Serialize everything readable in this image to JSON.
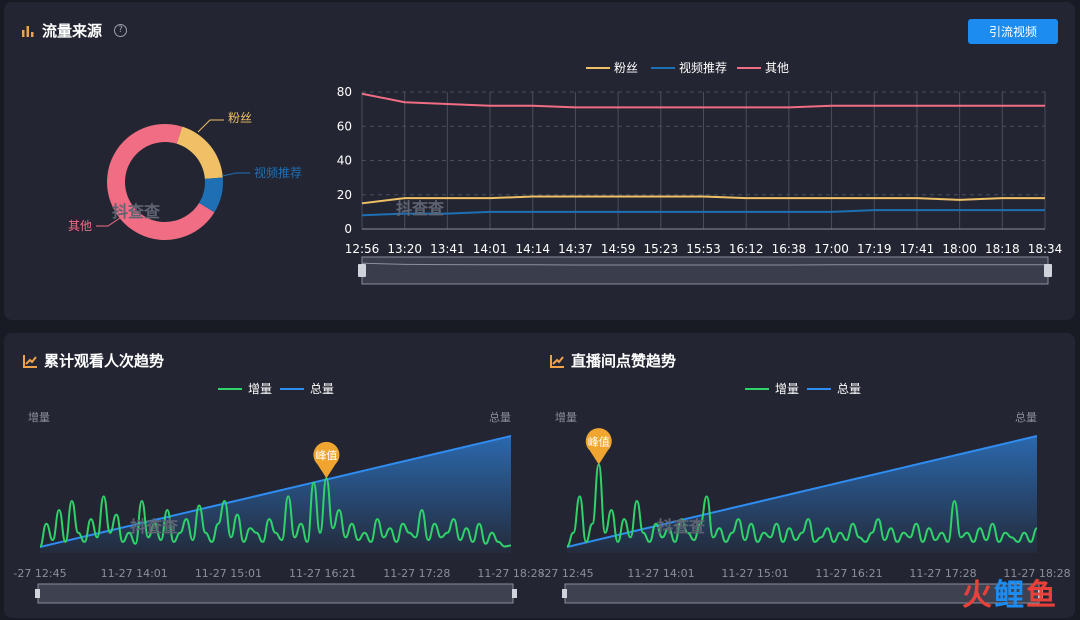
{
  "traffic": {
    "title": "流量来源",
    "button_label": "引流视频",
    "watermark": "抖查查",
    "colors": {
      "fans": "#f0c066",
      "video": "#1f6fb5",
      "other": "#f06d84"
    },
    "chart_data": [
      {
        "type": "pie",
        "variant": "donut",
        "labels": [
          "粉丝",
          "视频推荐",
          "其他"
        ],
        "values": [
          19,
          10,
          71
        ]
      },
      {
        "type": "line",
        "x": [
          "12:56",
          "13:20",
          "13:41",
          "14:01",
          "14:14",
          "14:37",
          "14:59",
          "15:23",
          "15:53",
          "16:12",
          "16:38",
          "17:00",
          "17:19",
          "17:41",
          "18:00",
          "18:18",
          "18:34"
        ],
        "ylim": [
          0,
          80
        ],
        "yticks": [
          0,
          20,
          40,
          60,
          80
        ],
        "legend": "top",
        "series": [
          {
            "name": "粉丝",
            "color": "#f0c066",
            "values": [
              15,
              18,
              18,
              18,
              19,
              19,
              19,
              19,
              19,
              18,
              18,
              18,
              18,
              18,
              17,
              18,
              18
            ]
          },
          {
            "name": "视频推荐",
            "color": "#1f6fb5",
            "values": [
              8,
              9,
              9,
              10,
              10,
              10,
              10,
              10,
              10,
              10,
              10,
              10,
              11,
              11,
              11,
              11,
              11
            ]
          },
          {
            "name": "其他",
            "color": "#f06d84",
            "values": [
              79,
              74,
              73,
              72,
              72,
              71,
              71,
              71,
              71,
              71,
              71,
              72,
              72,
              72,
              72,
              72,
              72
            ]
          }
        ]
      }
    ]
  },
  "views": {
    "title": "累计观看人次趋势",
    "left_axis": "增量",
    "right_axis": "总量",
    "peak_label": "峰值",
    "watermark": "抖查查",
    "chart_data": {
      "type": "line",
      "legend": "top",
      "x_ticks": [
        "-27 12:45",
        "11-27 14:01",
        "11-27 15:01",
        "11-27 16:21",
        "11-27 17:28",
        "11-27 18:28"
      ],
      "peak_index": 45,
      "series": [
        {
          "name": "增量",
          "color": "#2fd36a",
          "values": [
            0.05,
            0.3,
            0.12,
            0.45,
            0.1,
            0.55,
            0.2,
            0.1,
            0.35,
            0.15,
            0.6,
            0.2,
            0.4,
            0.1,
            0.2,
            0.08,
            0.55,
            0.15,
            0.3,
            0.12,
            0.45,
            0.1,
            0.2,
            0.35,
            0.12,
            0.5,
            0.2,
            0.1,
            0.3,
            0.55,
            0.15,
            0.4,
            0.1,
            0.25,
            0.2,
            0.1,
            0.35,
            0.2,
            0.12,
            0.6,
            0.15,
            0.3,
            0.1,
            0.75,
            0.2,
            0.8,
            0.25,
            0.45,
            0.15,
            0.3,
            0.12,
            0.2,
            0.1,
            0.35,
            0.15,
            0.25,
            0.1,
            0.3,
            0.2,
            0.15,
            0.45,
            0.12,
            0.3,
            0.15,
            0.2,
            0.35,
            0.12,
            0.25,
            0.1,
            0.3,
            0.08,
            0.2,
            0.1,
            0.05,
            0.06
          ]
        },
        {
          "name": "总量",
          "color": "#2f8cf0",
          "values": [
            0,
            0.05,
            0.1,
            0.15,
            0.2,
            0.25,
            0.3,
            0.35,
            0.4,
            0.45,
            0.5,
            0.55,
            0.6,
            0.65,
            0.7,
            0.75,
            0.8,
            0.85,
            0.9,
            0.95,
            1.0
          ]
        }
      ]
    }
  },
  "likes": {
    "title": "直播间点赞趋势",
    "left_axis": "增量",
    "right_axis": "总量",
    "peak_label": "峰值",
    "watermark": "抖查查",
    "chart_data": {
      "type": "line",
      "legend": "top",
      "x_ticks": [
        "-27 12:45",
        "11-27 14:01",
        "11-27 15:01",
        "11-27 16:21",
        "11-27 17:28",
        "11-27 18:28"
      ],
      "peak_index": 5,
      "series": [
        {
          "name": "增量",
          "color": "#2fd36a",
          "values": [
            0.05,
            0.2,
            0.6,
            0.1,
            0.3,
            0.95,
            0.2,
            0.45,
            0.1,
            0.35,
            0.15,
            0.55,
            0.2,
            0.1,
            0.3,
            0.15,
            0.25,
            0.1,
            0.35,
            0.2,
            0.12,
            0.3,
            0.6,
            0.15,
            0.25,
            0.1,
            0.2,
            0.35,
            0.12,
            0.3,
            0.1,
            0.2,
            0.15,
            0.3,
            0.1,
            0.25,
            0.12,
            0.2,
            0.35,
            0.1,
            0.15,
            0.25,
            0.1,
            0.2,
            0.12,
            0.3,
            0.15,
            0.1,
            0.2,
            0.35,
            0.12,
            0.25,
            0.1,
            0.2,
            0.15,
            0.3,
            0.1,
            0.25,
            0.12,
            0.2,
            0.1,
            0.55,
            0.15,
            0.2,
            0.1,
            0.25,
            0.12,
            0.3,
            0.1,
            0.2,
            0.15,
            0.1,
            0.2,
            0.1,
            0.25
          ]
        },
        {
          "name": "总量",
          "color": "#2f8cf0",
          "values": [
            0,
            0.05,
            0.1,
            0.15,
            0.2,
            0.25,
            0.3,
            0.35,
            0.4,
            0.45,
            0.5,
            0.55,
            0.6,
            0.65,
            0.7,
            0.75,
            0.8,
            0.85,
            0.9,
            0.95,
            1.0
          ]
        }
      ]
    }
  },
  "corner_logo": {
    "a": "火",
    "b": "鲤",
    "c": "鱼",
    "colors": [
      "#e8413a",
      "#1c8cf0",
      "#e8413a"
    ]
  }
}
